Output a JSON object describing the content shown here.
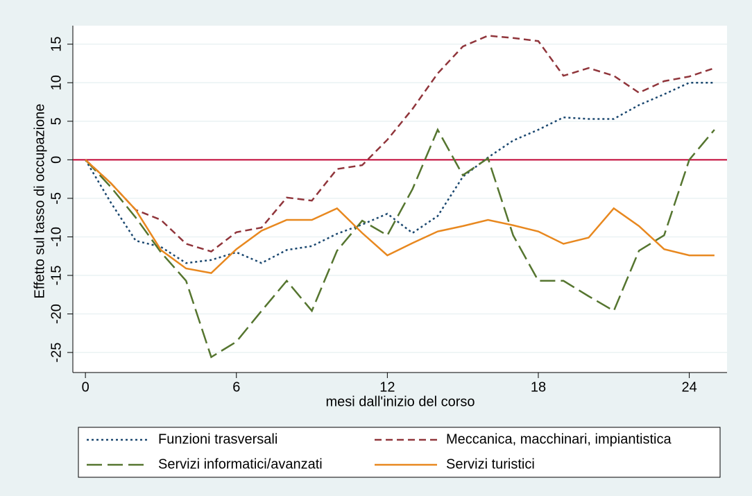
{
  "chart_data": {
    "type": "line",
    "x_label": "mesi dall'inizio del corso",
    "y_label": "Effetto sul tasso di occupazione",
    "x": [
      0,
      1,
      2,
      3,
      4,
      5,
      6,
      7,
      8,
      9,
      10,
      11,
      12,
      13,
      14,
      15,
      16,
      17,
      18,
      19,
      20,
      21,
      22,
      23,
      24,
      25
    ],
    "series": [
      {
        "name": "Funzioni trasversali",
        "color": "#1a476f",
        "dash": "3,4",
        "values": [
          0,
          -5.5,
          -10.5,
          -11.3,
          -13.4,
          -13,
          -12,
          -13.4,
          -11.7,
          -11.2,
          -9.6,
          -8.4,
          -7,
          -9.5,
          -7.3,
          -2.2,
          0.3,
          2.5,
          3.9,
          5.5,
          5.3,
          5.3,
          7.1,
          8.5,
          10,
          10
        ]
      },
      {
        "name": "Meccanica, macchinari, impiantistica",
        "color": "#90353b",
        "dash": "10,6",
        "values": [
          0,
          -3,
          -6.5,
          -7.8,
          -10.9,
          -11.9,
          -9.4,
          -8.8,
          -4.9,
          -5.3,
          -1.2,
          -0.7,
          2.6,
          6.6,
          11.2,
          14.7,
          16.1,
          15.8,
          15.4,
          10.9,
          11.9,
          10.9,
          8.7,
          10.2,
          10.8,
          11.9
        ]
      },
      {
        "name": "Servizi informatici/avanzati",
        "color": "#55752f",
        "dash": "22,8",
        "values": [
          0,
          -3.5,
          -7.5,
          -12,
          -15.7,
          -25.6,
          -23.6,
          -19.6,
          -15.7,
          -19.6,
          -11.8,
          -7.9,
          -9.8,
          -3.8,
          3.9,
          -2,
          0.2,
          -9.8,
          -15.7,
          -15.7,
          -17.7,
          -19.6,
          -11.8,
          -9.8,
          0,
          3.9
        ]
      },
      {
        "name": "Servizi turistici",
        "color": "#e8881f",
        "dash": "none",
        "values": [
          0,
          -3,
          -6.5,
          -11.7,
          -14.1,
          -14.7,
          -11.6,
          -9.2,
          -7.8,
          -7.8,
          -6.3,
          -9.5,
          -12.4,
          -10.8,
          -9.3,
          -8.6,
          -7.8,
          -8.5,
          -9.3,
          -10.9,
          -10.1,
          -6.3,
          -8.6,
          -11.6,
          -12.4,
          -12.4
        ]
      }
    ],
    "xlim": [
      -0.5,
      25.5
    ],
    "xticks": [
      0,
      6,
      12,
      18,
      24
    ],
    "ylim": [
      -27.6,
      17.4
    ],
    "yticks": [
      -25,
      -20,
      -15,
      -10,
      -5,
      0,
      5,
      10,
      15
    ],
    "yline": 0,
    "yline_color": "#c10534",
    "grid": true
  }
}
